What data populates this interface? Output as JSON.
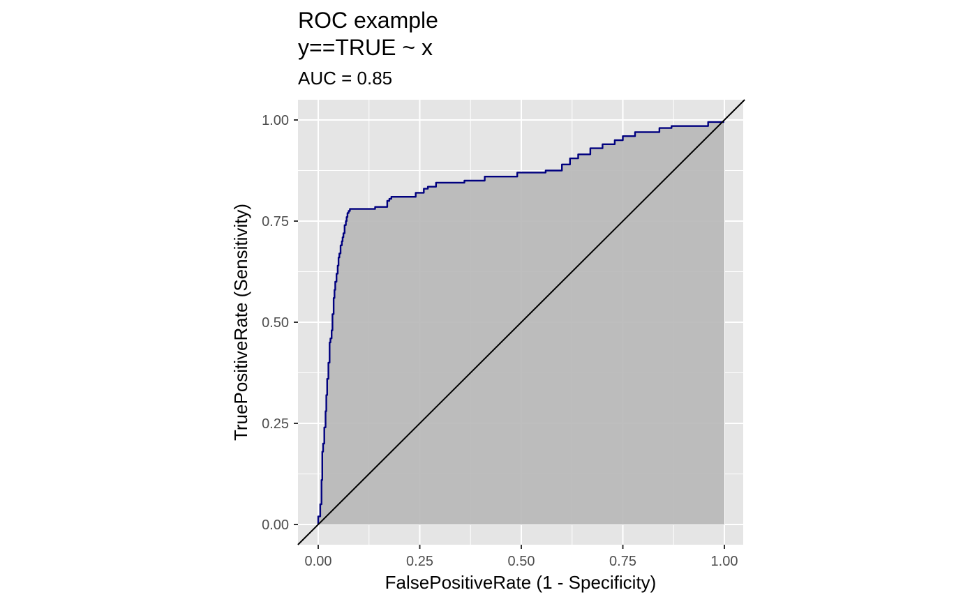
{
  "chart_data": {
    "type": "line",
    "title_line1": "ROC example",
    "title_line2": "y==TRUE ~ x",
    "subtitle": "AUC = 0.85",
    "xlabel": "FalsePositiveRate (1 - Specificity)",
    "ylabel": "TruePositiveRate (Sensitivity)",
    "xlim": [
      0,
      1
    ],
    "ylim": [
      0,
      1
    ],
    "x_ticks": [
      "0.00",
      "0.25",
      "0.50",
      "0.75",
      "1.00"
    ],
    "y_ticks": [
      "0.00",
      "0.25",
      "0.50",
      "0.75",
      "1.00"
    ],
    "grid": true,
    "colors": {
      "panel_bg": "#e5e5e5",
      "area_fill": "#b7b7b7",
      "roc_line": "#00007f",
      "diagonal": "#000000",
      "grid": "#ffffff"
    },
    "series": [
      {
        "type": "roc-curve",
        "x": [
          0.0,
          0.0,
          0.005,
          0.005,
          0.008,
          0.008,
          0.01,
          0.01,
          0.012,
          0.012,
          0.015,
          0.015,
          0.018,
          0.018,
          0.02,
          0.02,
          0.022,
          0.022,
          0.025,
          0.025,
          0.028,
          0.028,
          0.03,
          0.03,
          0.033,
          0.033,
          0.035,
          0.035,
          0.038,
          0.038,
          0.04,
          0.04,
          0.042,
          0.042,
          0.045,
          0.045,
          0.048,
          0.048,
          0.05,
          0.05,
          0.052,
          0.052,
          0.055,
          0.055,
          0.058,
          0.058,
          0.06,
          0.06,
          0.062,
          0.062,
          0.065,
          0.065,
          0.068,
          0.068,
          0.07,
          0.07,
          0.072,
          0.072,
          0.075,
          0.075,
          0.078,
          0.078,
          0.082,
          0.082,
          0.085,
          0.085,
          0.09,
          0.09,
          0.095,
          0.095,
          0.1,
          0.1,
          0.14,
          0.14,
          0.17,
          0.17,
          0.175,
          0.175,
          0.18,
          0.18,
          0.24,
          0.24,
          0.26,
          0.26,
          0.27,
          0.27,
          0.29,
          0.29,
          0.36,
          0.36,
          0.41,
          0.41,
          0.49,
          0.49,
          0.56,
          0.56,
          0.6,
          0.6,
          0.62,
          0.62,
          0.64,
          0.64,
          0.67,
          0.67,
          0.7,
          0.7,
          0.73,
          0.73,
          0.75,
          0.75,
          0.78,
          0.78,
          0.84,
          0.84,
          0.87,
          0.87,
          0.88,
          0.88,
          0.96,
          0.96,
          0.98,
          0.98,
          1.0
        ],
        "y": [
          0.0,
          0.02,
          0.02,
          0.05,
          0.05,
          0.11,
          0.11,
          0.18,
          0.18,
          0.2,
          0.2,
          0.24,
          0.24,
          0.28,
          0.28,
          0.32,
          0.32,
          0.36,
          0.36,
          0.4,
          0.4,
          0.45,
          0.45,
          0.46,
          0.46,
          0.48,
          0.48,
          0.52,
          0.52,
          0.56,
          0.56,
          0.58,
          0.58,
          0.6,
          0.6,
          0.62,
          0.62,
          0.64,
          0.64,
          0.66,
          0.66,
          0.67,
          0.67,
          0.69,
          0.69,
          0.7,
          0.7,
          0.71,
          0.71,
          0.72,
          0.72,
          0.74,
          0.74,
          0.75,
          0.75,
          0.76,
          0.76,
          0.77,
          0.77,
          0.775,
          0.775,
          0.78,
          0.78,
          0.78,
          0.78,
          0.78,
          0.78,
          0.78,
          0.78,
          0.78,
          0.78,
          0.78,
          0.78,
          0.785,
          0.785,
          0.8,
          0.8,
          0.805,
          0.805,
          0.81,
          0.81,
          0.82,
          0.82,
          0.83,
          0.83,
          0.835,
          0.835,
          0.845,
          0.845,
          0.85,
          0.85,
          0.86,
          0.86,
          0.87,
          0.87,
          0.875,
          0.875,
          0.89,
          0.89,
          0.905,
          0.905,
          0.915,
          0.915,
          0.93,
          0.93,
          0.94,
          0.94,
          0.95,
          0.95,
          0.96,
          0.96,
          0.97,
          0.97,
          0.98,
          0.98,
          0.985,
          0.985,
          0.985,
          0.985,
          0.995,
          0.995,
          0.995,
          0.995
        ]
      },
      {
        "type": "diagonal",
        "x": [
          -0.05,
          1.05
        ],
        "y": [
          -0.05,
          1.05
        ]
      }
    ]
  }
}
